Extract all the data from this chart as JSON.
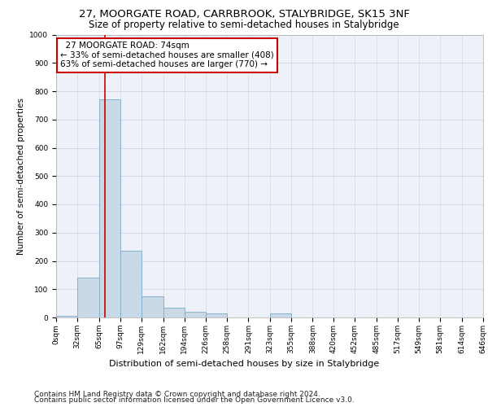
{
  "title1": "27, MOORGATE ROAD, CARRBROOK, STALYBRIDGE, SK15 3NF",
  "title2": "Size of property relative to semi-detached houses in Stalybridge",
  "xlabel": "Distribution of semi-detached houses by size in Stalybridge",
  "ylabel": "Number of semi-detached properties",
  "footer1": "Contains HM Land Registry data © Crown copyright and database right 2024.",
  "footer2": "Contains public sector information licensed under the Open Government Licence v3.0.",
  "property_size": 74,
  "property_label": "27 MOORGATE ROAD: 74sqm",
  "smaller_pct": 33,
  "smaller_count": 408,
  "larger_pct": 63,
  "larger_count": 770,
  "bar_color": "#c9d9e8",
  "bar_edge_color": "#7aaec8",
  "redline_color": "#cc0000",
  "annotation_box_color": "#cc0000",
  "grid_color": "#d0d8e8",
  "bin_edges": [
    0,
    32,
    65,
    97,
    129,
    162,
    194,
    226,
    258,
    291,
    323,
    355,
    388,
    420,
    452,
    485,
    517,
    549,
    581,
    614,
    646
  ],
  "bar_heights": [
    5,
    140,
    770,
    235,
    75,
    35,
    20,
    15,
    0,
    0,
    15,
    0,
    0,
    0,
    0,
    0,
    0,
    0,
    0,
    0
  ],
  "ylim": [
    0,
    1000
  ],
  "yticks": [
    0,
    100,
    200,
    300,
    400,
    500,
    600,
    700,
    800,
    900,
    1000
  ],
  "background_color": "#eef2f8",
  "title1_fontsize": 9.5,
  "title2_fontsize": 8.5,
  "axis_label_fontsize": 7.5,
  "tick_fontsize": 6.5,
  "footer_fontsize": 6.5,
  "annotation_fontsize": 7.5,
  "xlabel_fontsize": 8.0,
  "x_tick_labels": [
    "0sqm",
    "32sqm",
    "65sqm",
    "97sqm",
    "129sqm",
    "162sqm",
    "194sqm",
    "226sqm",
    "258sqm",
    "291sqm",
    "323sqm",
    "355sqm",
    "388sqm",
    "420sqm",
    "452sqm",
    "485sqm",
    "517sqm",
    "549sqm",
    "581sqm",
    "614sqm",
    "646sqm"
  ]
}
